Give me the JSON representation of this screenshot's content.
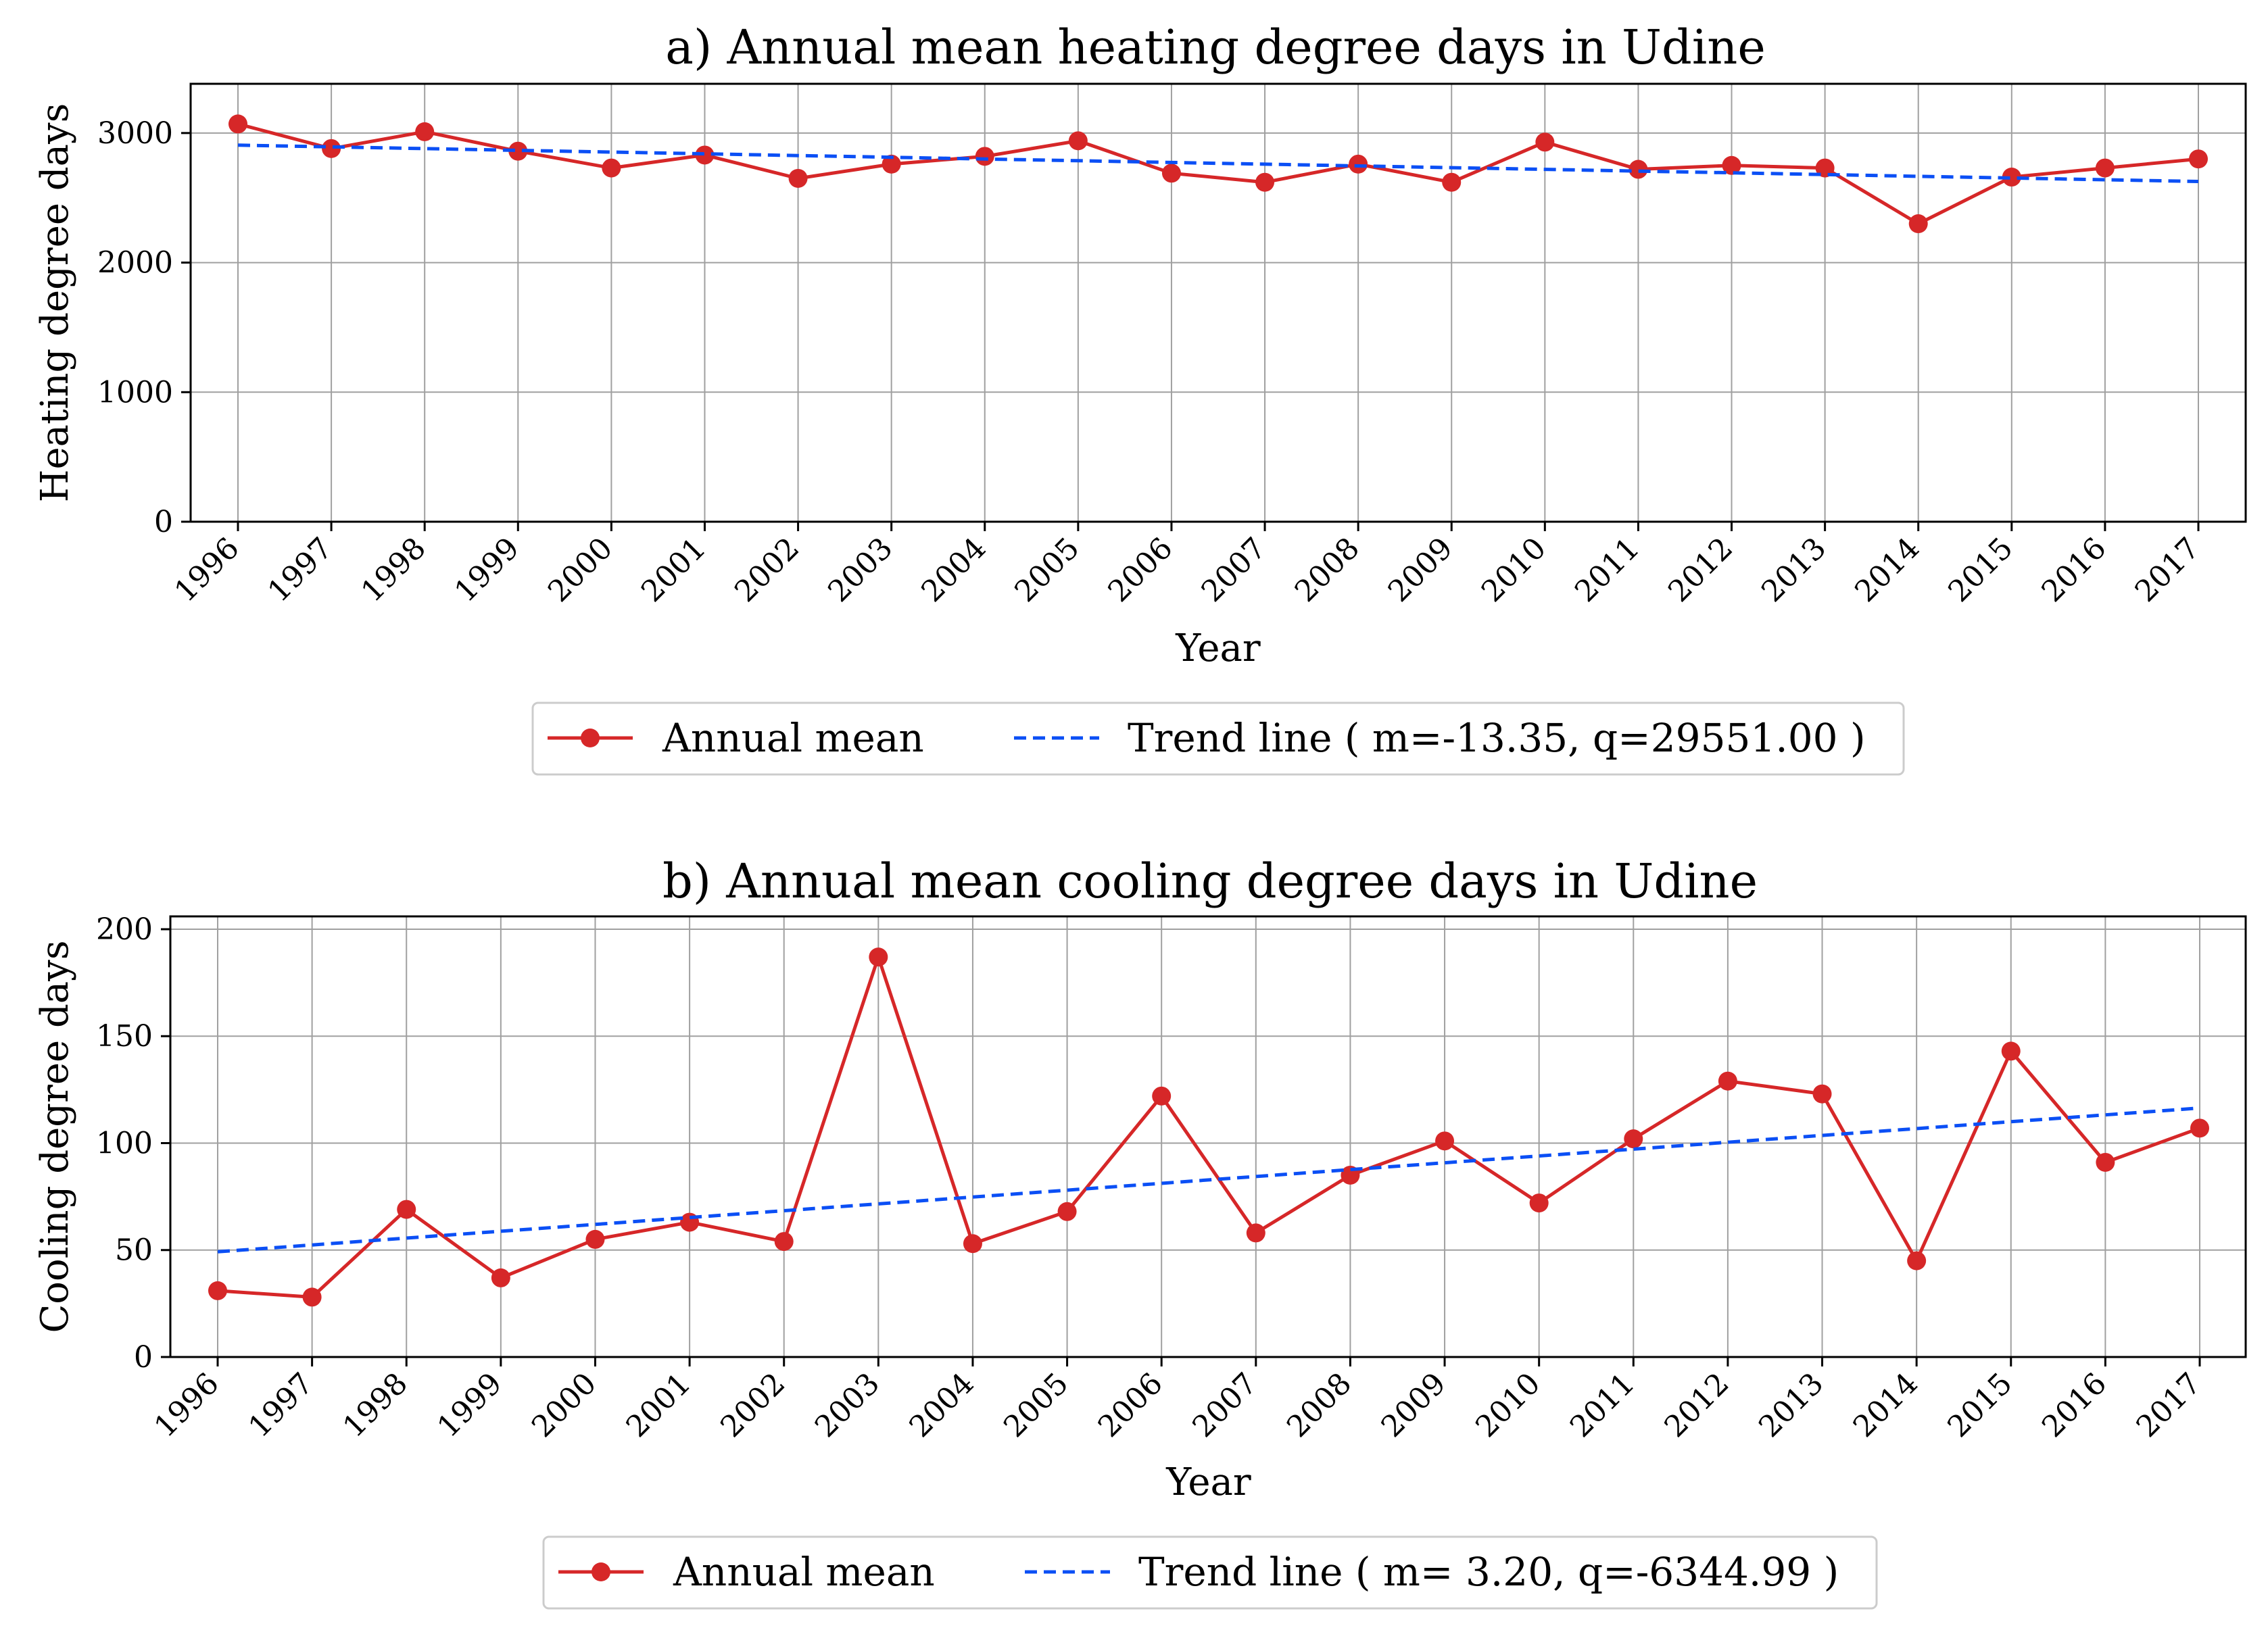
{
  "colors": {
    "annual": "#d62728",
    "trend": "#0b4ff5",
    "grid": "#a0a0a0",
    "axis": "#000000"
  },
  "chart_data": [
    {
      "type": "line",
      "title": "a) Annual mean heating degree days in Udine",
      "xlabel": "Year",
      "ylabel": "Heating degree days",
      "grid": true,
      "legend_position": "below",
      "categories": [
        "1996",
        "1997",
        "1998",
        "1999",
        "2000",
        "2001",
        "2002",
        "2003",
        "2004",
        "2005",
        "2006",
        "2007",
        "2008",
        "2009",
        "2010",
        "2011",
        "2012",
        "2013",
        "2014",
        "2015",
        "2016",
        "2017"
      ],
      "yticks": [
        0,
        1000,
        2000,
        3000
      ],
      "ylim": [
        0,
        3380
      ],
      "series": [
        {
          "name": "Annual mean",
          "style": "solid-marker",
          "values": [
            3070,
            2880,
            3010,
            2860,
            2730,
            2830,
            2650,
            2760,
            2820,
            2940,
            2690,
            2620,
            2760,
            2620,
            2930,
            2720,
            2750,
            2730,
            2300,
            2660,
            2730,
            2800
          ]
        },
        {
          "name": "Trend line",
          "style": "dashed",
          "values": [
            2906.4,
            2893.1,
            2879.7,
            2866.4,
            2853.0,
            2839.7,
            2826.3,
            2813.0,
            2799.6,
            2786.3,
            2772.9,
            2759.6,
            2746.2,
            2732.9,
            2719.5,
            2706.2,
            2692.8,
            2679.5,
            2666.1,
            2652.8,
            2639.4,
            2626.1
          ]
        }
      ],
      "legend": [
        "Annual mean",
        "Trend line ( m=-13.35, q=29551.00 )"
      ]
    },
    {
      "type": "line",
      "title": "b) Annual mean cooling degree days in Udine",
      "xlabel": "Year",
      "ylabel": "Cooling degree days",
      "grid": true,
      "legend_position": "below",
      "categories": [
        "1996",
        "1997",
        "1998",
        "1999",
        "2000",
        "2001",
        "2002",
        "2003",
        "2004",
        "2005",
        "2006",
        "2007",
        "2008",
        "2009",
        "2010",
        "2011",
        "2012",
        "2013",
        "2014",
        "2015",
        "2016",
        "2017"
      ],
      "yticks": [
        0,
        50,
        100,
        150,
        200
      ],
      "ylim": [
        0,
        206
      ],
      "series": [
        {
          "name": "Annual mean",
          "style": "solid-marker",
          "values": [
            31,
            28,
            69,
            37,
            55,
            63,
            54,
            187,
            53,
            68,
            122,
            58,
            85,
            101,
            72,
            102,
            129,
            123,
            45,
            143,
            91,
            107
          ]
        },
        {
          "name": "Trend line",
          "style": "dashed",
          "values": [
            49.2,
            52.4,
            55.6,
            58.8,
            62.0,
            65.2,
            68.4,
            71.6,
            74.8,
            78.0,
            81.2,
            84.4,
            87.6,
            90.8,
            94.0,
            97.2,
            100.4,
            103.6,
            106.8,
            110.0,
            113.2,
            116.4
          ]
        }
      ],
      "legend": [
        "Annual mean",
        "Trend line ( m= 3.20, q=-6344.99 )"
      ]
    }
  ]
}
